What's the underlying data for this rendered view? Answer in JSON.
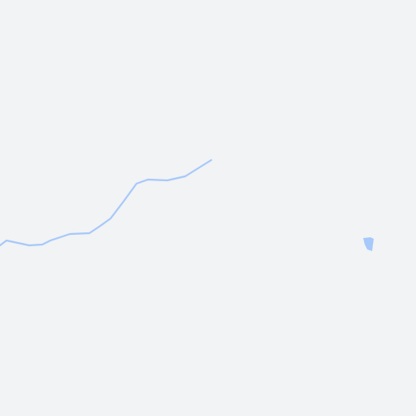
{
  "map": {
    "land_color": "#f1f3f4",
    "water_color": "#a7c8fa",
    "features": [
      {
        "kind": "stream",
        "name": ""
      },
      {
        "kind": "pond",
        "name": ""
      }
    ]
  }
}
